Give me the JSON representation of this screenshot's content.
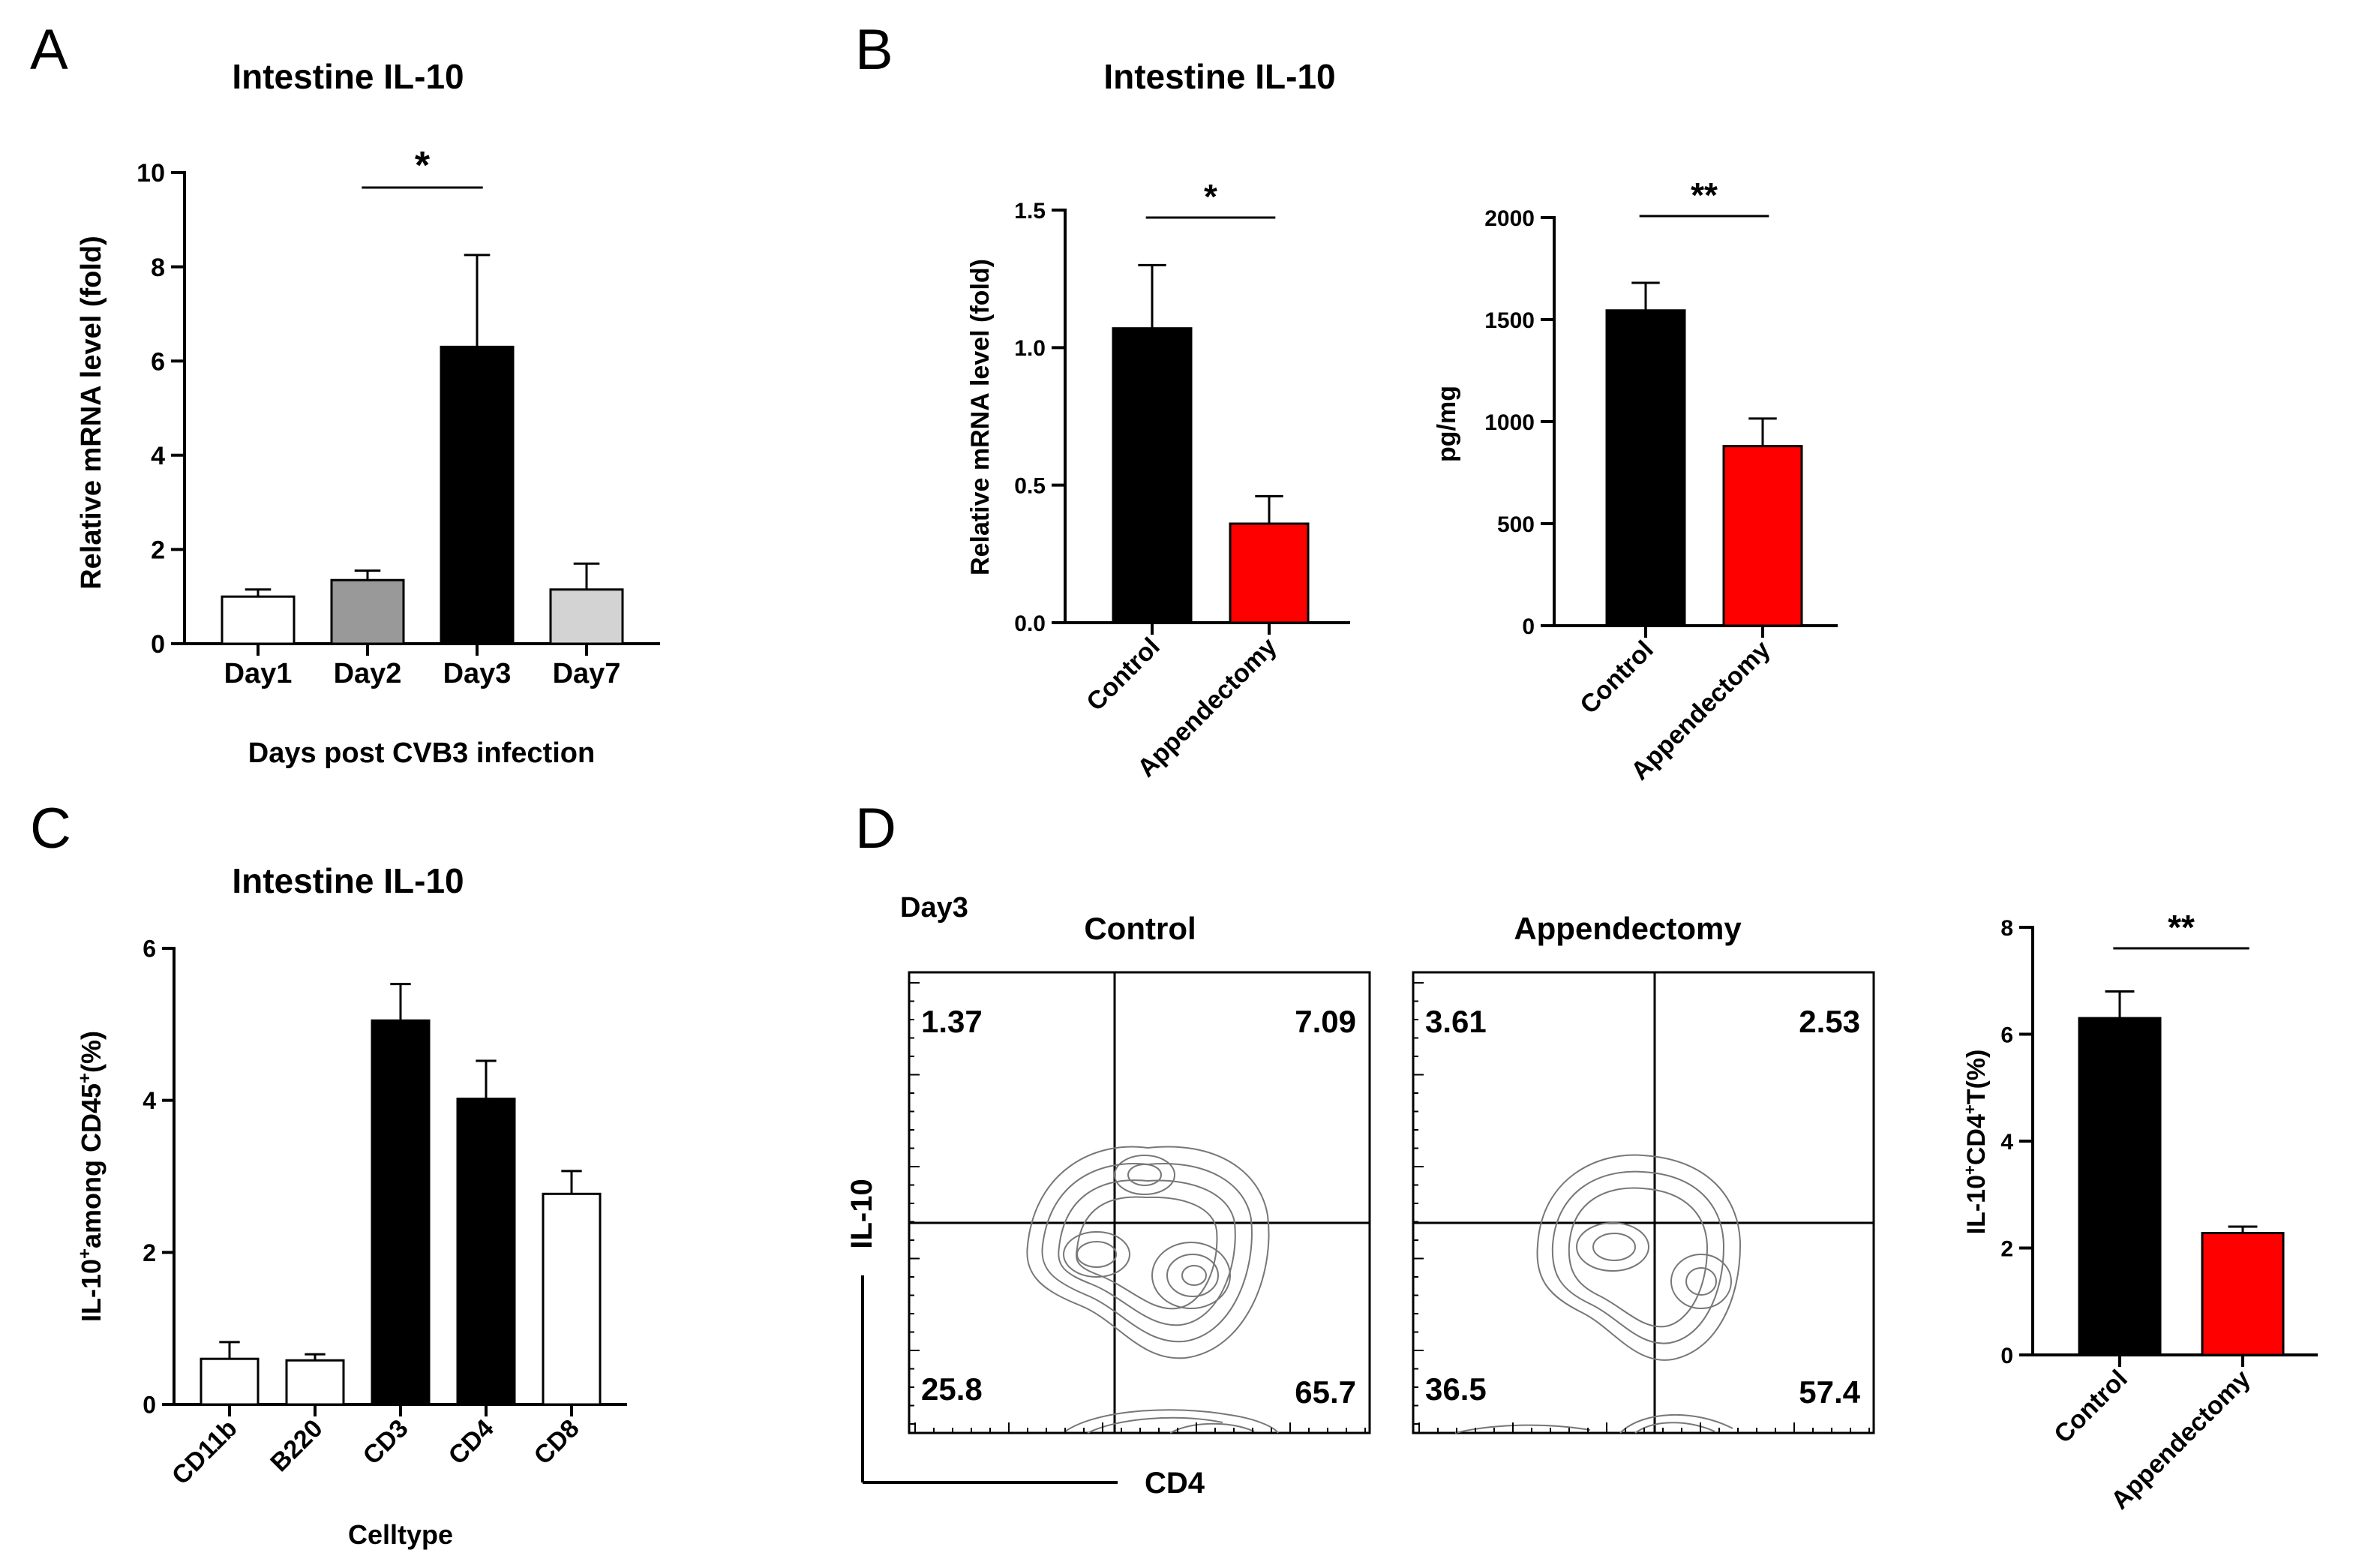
{
  "chart_data": [
    {
      "panel": "A",
      "type": "bar",
      "title": "Intestine IL-10",
      "xlabel": "Days post CVB3 infection",
      "ylabel": "Relative mRNA level (fold)",
      "ylim": [
        0,
        10
      ],
      "yticks": [
        0,
        2,
        4,
        6,
        8,
        10
      ],
      "categories": [
        "Day1",
        "Day2",
        "Day3",
        "Day7"
      ],
      "values": [
        1.0,
        1.35,
        6.3,
        1.15
      ],
      "errors": [
        0.15,
        0.2,
        1.95,
        0.55
      ],
      "colors": [
        "#ffffff",
        "#999999",
        "#000000",
        "#d3d3d3"
      ],
      "significance": [
        {
          "from": 1,
          "to": 2,
          "label": "*"
        }
      ]
    },
    {
      "panel": "B",
      "type": "bar",
      "title": "Intestine IL-10",
      "xlabel": "",
      "ylabel": "Relative mRNA level (fold)",
      "ylim": [
        0,
        1.5
      ],
      "yticks": [
        "0.0",
        "0.5",
        "1.0",
        "1.5"
      ],
      "categories": [
        "Control",
        "Appendectomy"
      ],
      "values": [
        1.07,
        0.36
      ],
      "errors": [
        0.23,
        0.1
      ],
      "colors": [
        "#000000",
        "#ff0000"
      ],
      "significance": [
        {
          "from": 0,
          "to": 1,
          "label": "*"
        }
      ]
    },
    {
      "panel": "B2",
      "type": "bar",
      "title": "",
      "xlabel": "",
      "ylabel": "pg/mg",
      "ylim": [
        0,
        2000
      ],
      "yticks": [
        0,
        500,
        1000,
        1500,
        2000
      ],
      "categories": [
        "Control",
        "Appendectomy"
      ],
      "values": [
        1545,
        880
      ],
      "errors": [
        135,
        135
      ],
      "colors": [
        "#000000",
        "#ff0000"
      ],
      "significance": [
        {
          "from": 0,
          "to": 1,
          "label": "**"
        }
      ]
    },
    {
      "panel": "C",
      "type": "bar",
      "title": "Intestine IL-10",
      "xlabel": "Celltype",
      "ylabel_main": "IL-10",
      "ylabel_sup": "+",
      "ylabel_mid": "among CD45",
      "ylabel_sup2": "+",
      "ylabel_tail": "(%)",
      "ylim": [
        0,
        6
      ],
      "yticks": [
        0,
        2,
        4,
        6
      ],
      "categories": [
        "CD11b",
        "B220",
        "CD3",
        "CD4",
        "CD8"
      ],
      "values": [
        0.6,
        0.58,
        5.05,
        4.02,
        2.77
      ],
      "errors": [
        0.22,
        0.08,
        0.48,
        0.5,
        0.3
      ],
      "colors": [
        "#ffffff",
        "#ffffff",
        "#000000",
        "#000000",
        "#ffffff"
      ]
    },
    {
      "panel": "D",
      "type": "scatter",
      "subtype": "flow cytometry contour plots",
      "timepoint": "Day3",
      "xlabel": "CD4",
      "ylabel": "IL-10",
      "plots": [
        {
          "title": "Control",
          "quadrants": {
            "ul": "1.37",
            "ur": "7.09",
            "ll": "25.8",
            "lr": "65.7"
          }
        },
        {
          "title": "Appendectomy",
          "quadrants": {
            "ul": "3.61",
            "ur": "2.53",
            "ll": "36.5",
            "lr": "57.4"
          }
        }
      ]
    },
    {
      "panel": "D2",
      "type": "bar",
      "title": "",
      "xlabel": "",
      "ylabel_main": "IL-10",
      "ylabel_sup": "+",
      "ylabel_mid": "CD4",
      "ylabel_sup2": "+",
      "ylabel_tail": "T(%)",
      "ylim": [
        0,
        8
      ],
      "yticks": [
        0,
        2,
        4,
        6,
        8
      ],
      "categories": [
        "Control",
        "Appendectomy"
      ],
      "values": [
        6.3,
        2.28
      ],
      "errors": [
        0.5,
        0.12
      ],
      "colors": [
        "#000000",
        "#ff0000"
      ],
      "significance": [
        {
          "from": 0,
          "to": 1,
          "label": "**"
        }
      ]
    }
  ],
  "panel_labels": [
    "A",
    "B",
    "C",
    "D"
  ]
}
